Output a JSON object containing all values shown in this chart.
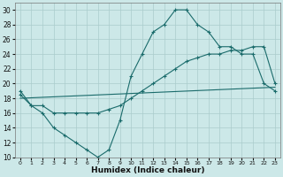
{
  "xlabel": "Humidex (Indice chaleur)",
  "background_color": "#cce8e8",
  "grid_color": "#aacccc",
  "line_color": "#1a6b6b",
  "xlim": [
    -0.5,
    23.5
  ],
  "ylim": [
    10,
    31
  ],
  "xticks": [
    0,
    1,
    2,
    3,
    4,
    5,
    6,
    7,
    8,
    9,
    10,
    11,
    12,
    13,
    14,
    15,
    16,
    17,
    18,
    19,
    20,
    21,
    22,
    23
  ],
  "yticks": [
    10,
    12,
    14,
    16,
    18,
    20,
    22,
    24,
    26,
    28,
    30
  ],
  "series1_x": [
    0,
    1,
    2,
    3,
    4,
    5,
    6,
    7,
    8,
    9,
    10,
    11,
    12,
    13,
    14,
    15,
    16,
    17,
    18,
    19,
    20,
    21,
    22,
    23
  ],
  "series1_y": [
    19,
    17,
    16,
    14,
    13,
    12,
    11,
    10,
    11,
    15,
    21,
    24,
    27,
    28,
    30,
    30,
    28,
    27,
    25,
    25,
    24,
    24,
    20,
    19
  ],
  "series2_x": [
    0,
    1,
    2,
    3,
    4,
    5,
    6,
    7,
    8,
    9,
    10,
    11,
    12,
    13,
    14,
    15,
    16,
    17,
    18,
    19,
    20,
    21,
    22,
    23
  ],
  "series2_y": [
    18.5,
    17,
    17,
    16,
    16,
    16,
    16,
    16,
    16.5,
    17,
    18,
    19,
    20,
    21,
    22,
    23,
    23.5,
    24,
    24,
    24.5,
    24.5,
    25,
    25,
    20
  ],
  "series3_x": [
    0,
    23
  ],
  "series3_y": [
    18,
    19.5
  ]
}
